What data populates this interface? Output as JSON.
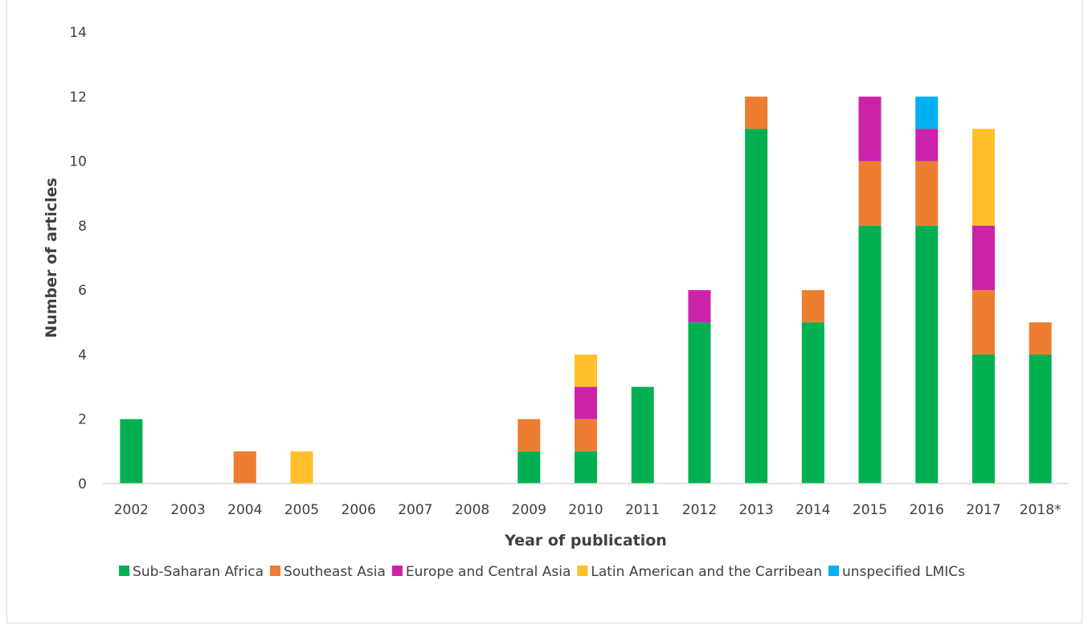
{
  "chart_data": {
    "type": "bar",
    "stacked": true,
    "title": "",
    "xlabel": "Year of publication",
    "ylabel": "Number of articles",
    "ylim": [
      0,
      14
    ],
    "yticks": [
      0,
      2,
      4,
      6,
      8,
      10,
      12,
      14
    ],
    "grid": false,
    "legend_position": "bottom",
    "categories": [
      "2002",
      "2003",
      "2004",
      "2005",
      "2006",
      "2007",
      "2008",
      "2009",
      "2010",
      "2011",
      "2012",
      "2013",
      "2014",
      "2015",
      "2016",
      "2017",
      "2018*"
    ],
    "series": [
      {
        "name": "Sub-Saharan Africa",
        "color": "#00b050",
        "values": [
          2,
          0,
          0,
          0,
          0,
          0,
          0,
          1,
          1,
          3,
          5,
          11,
          5,
          8,
          8,
          4,
          4
        ]
      },
      {
        "name": "Southeast Asia",
        "color": "#ed7d31",
        "values": [
          0,
          0,
          1,
          0,
          0,
          0,
          0,
          1,
          1,
          0,
          0,
          1,
          1,
          2,
          2,
          2,
          1
        ]
      },
      {
        "name": "Europe and Central Asia",
        "color": "#cc22aa",
        "values": [
          0,
          0,
          0,
          0,
          0,
          0,
          0,
          0,
          1,
          0,
          1,
          0,
          0,
          2,
          1,
          2,
          0
        ]
      },
      {
        "name": "Latin American and the Carribean",
        "color": "#ffc02b",
        "values": [
          0,
          0,
          0,
          1,
          0,
          0,
          0,
          0,
          1,
          0,
          0,
          0,
          0,
          0,
          0,
          3,
          0
        ]
      },
      {
        "name": "unspecified LMICs",
        "color": "#00b0f0",
        "values": [
          0,
          0,
          0,
          0,
          0,
          0,
          0,
          0,
          0,
          0,
          0,
          0,
          0,
          0,
          1,
          0,
          0
        ]
      }
    ]
  }
}
